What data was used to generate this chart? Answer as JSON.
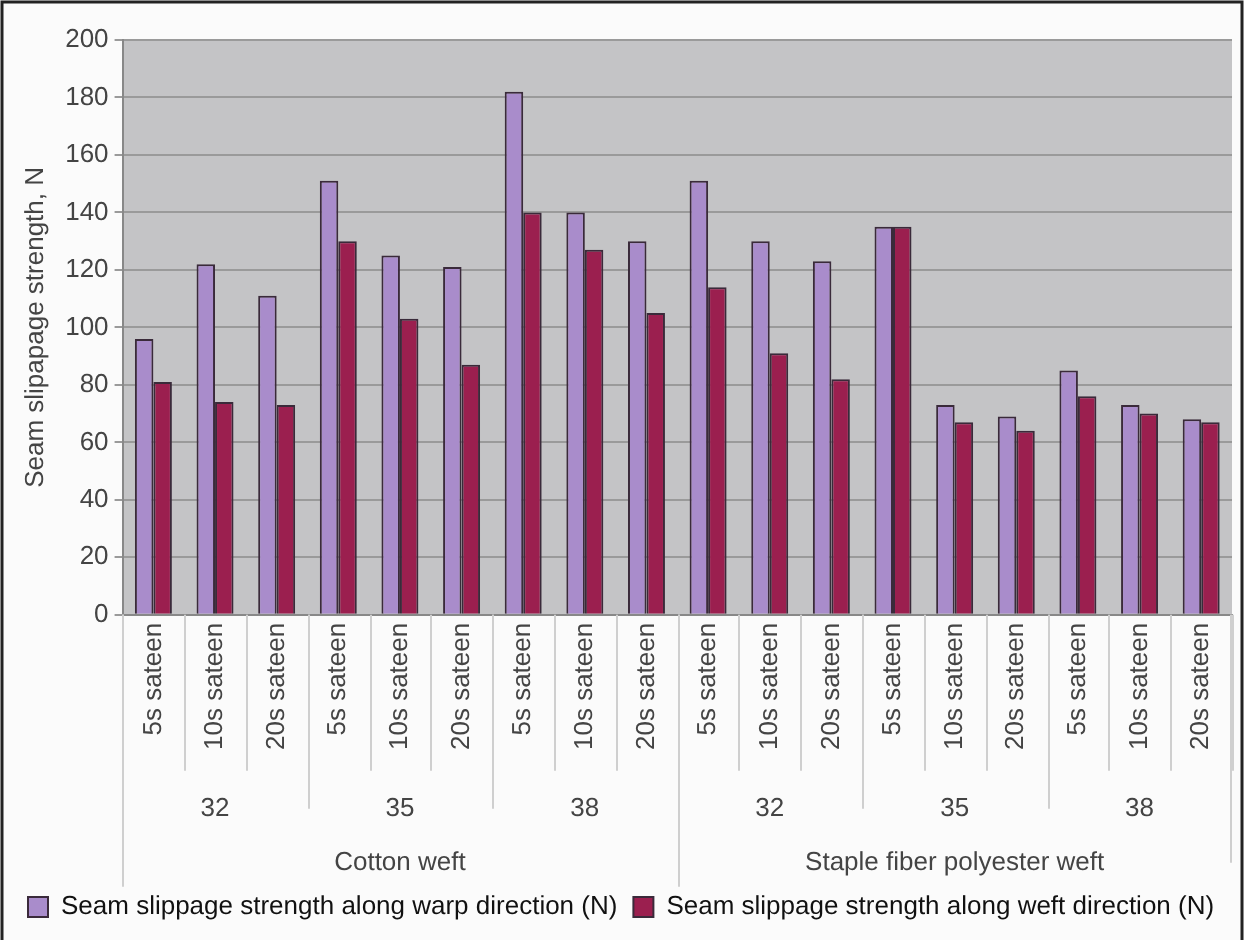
{
  "chart_data": {
    "type": "bar",
    "ylabel": "Seam slipapage strength, N",
    "categories": [
      "5s sateen",
      "10s sateen",
      "20s sateen",
      "5s sateen",
      "10s sateen",
      "20s sateen",
      "5s sateen",
      "10s sateen",
      "20s sateen",
      "5s sateen",
      "10s sateen",
      "20s sateen",
      "5s sateen",
      "10s sateen",
      "20s sateen",
      "5s sateen",
      "10s sateen",
      "20s sateen"
    ],
    "series": [
      {
        "name": "Seam slippage strength along warp direction (N)",
        "color": "#a98ccb",
        "values": [
          96,
          122,
          111,
          151,
          125,
          121,
          182,
          140,
          130,
          151,
          130,
          123,
          135,
          73,
          69,
          85,
          73,
          68
        ]
      },
      {
        "name": "Seam slippage strength along weft direction (N)",
        "color": "#9b1f4f",
        "values": [
          81,
          74,
          73,
          130,
          103,
          87,
          140,
          127,
          105,
          114,
          91,
          82,
          135,
          67,
          64,
          76,
          70,
          67
        ]
      }
    ],
    "annotations": [
      "32",
      "35",
      "38",
      "32",
      "35",
      "38",
      "Cotton weft",
      "Staple fiber polyester weft"
    ],
    "ylim": [
      0,
      200
    ],
    "yticks": [
      0,
      20,
      40,
      60,
      80,
      100,
      120,
      140,
      160,
      180,
      200
    ],
    "grid": "y",
    "legend": "bottom"
  }
}
